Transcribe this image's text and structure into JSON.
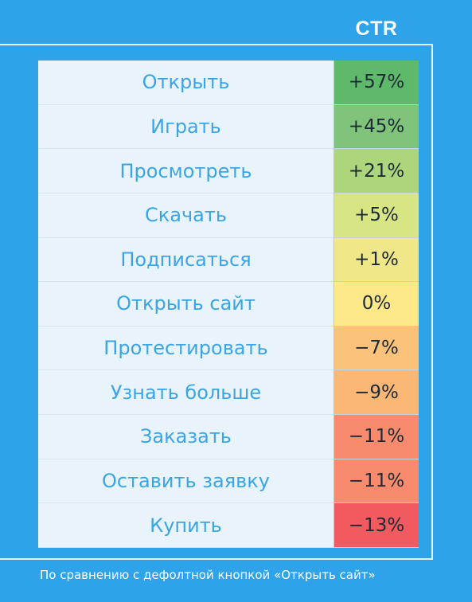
{
  "chart_data": {
    "type": "table",
    "column_header": "CTR",
    "rows": [
      {
        "label": "Открыть",
        "value": 57,
        "display": "+57%",
        "color": "#5fb96a"
      },
      {
        "label": "Играть",
        "value": 45,
        "display": "+45%",
        "color": "#7fc47a"
      },
      {
        "label": "Просмотреть",
        "value": 21,
        "display": "+21%",
        "color": "#acd57c"
      },
      {
        "label": "Скачать",
        "value": 5,
        "display": "+5%",
        "color": "#d8e584"
      },
      {
        "label": "Подписаться",
        "value": 1,
        "display": "+1%",
        "color": "#f0e788"
      },
      {
        "label": "Открыть сайт",
        "value": 0,
        "display": "0%",
        "color": "#fde98a"
      },
      {
        "label": "Протестировать",
        "value": -7,
        "display": "−7%",
        "color": "#fbc27c"
      },
      {
        "label": "Узнать больше",
        "value": -9,
        "display": "−9%",
        "color": "#fab775"
      },
      {
        "label": "Заказать",
        "value": -11,
        "display": "−11%",
        "color": "#f88b6d"
      },
      {
        "label": "Оставить заявку",
        "value": -11,
        "display": "−11%",
        "color": "#f88b6d"
      },
      {
        "label": "Купить",
        "value": -13,
        "display": "−13%",
        "color": "#f15a5e"
      }
    ],
    "footnote": "По сравнению с дефолтной кнопкой «Открыть сайт»"
  }
}
